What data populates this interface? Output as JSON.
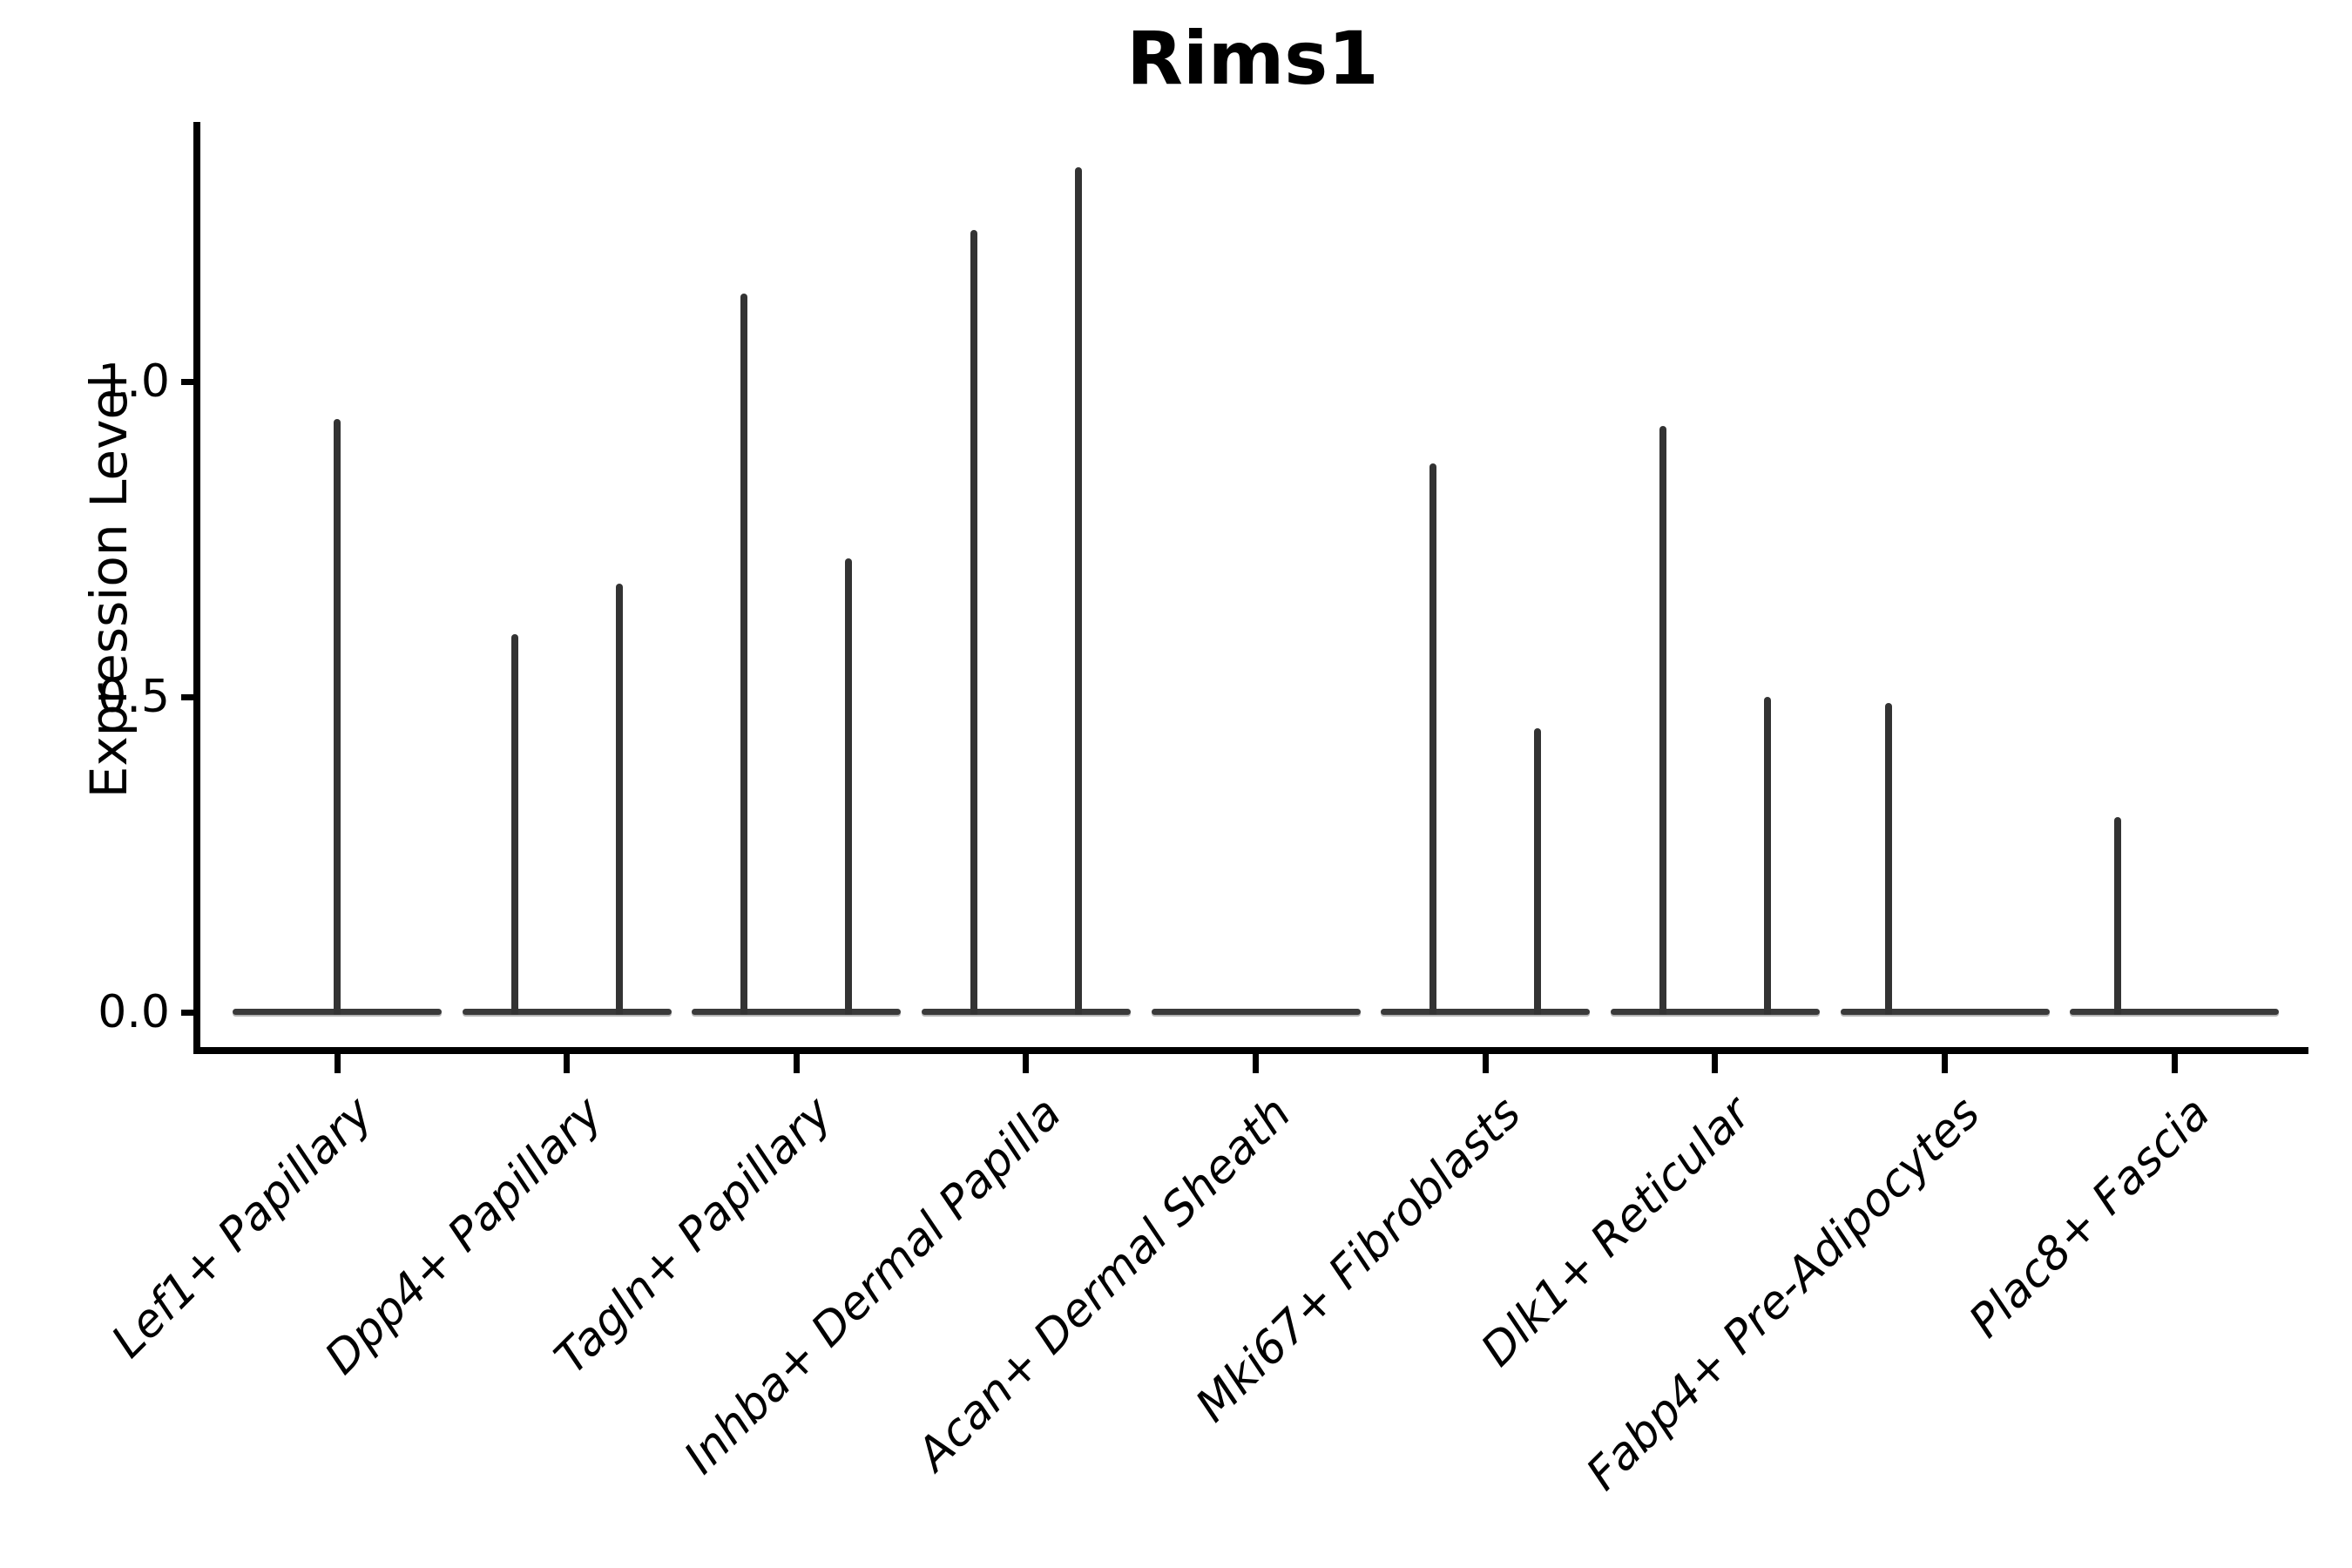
{
  "figure": {
    "title": "Rims1",
    "background_color": "#ffffff",
    "axis_color": "#000000"
  },
  "chart_data": {
    "type": "violin",
    "title": "Rims1",
    "xlabel": "",
    "ylabel": "Expression Level",
    "ylim": [
      -0.06,
      1.41
    ],
    "yticks": [
      0.0,
      0.5,
      1.0
    ],
    "ytick_labels": [
      "0.0",
      "0.5",
      "1.0"
    ],
    "grid": false,
    "legend": null,
    "categories": [
      "Lef1+ Papillary",
      "Dpp4+ Papillary",
      "Tagln+ Papillary",
      "Inhba+ Dermal Papilla",
      "Acan+ Dermal Sheath",
      "Mki67+ Fibroblasts",
      "Dlk1+ Reticular",
      "Fabp4+ Pre-Adipocytes",
      "Plac8+ Fascia"
    ],
    "violins": [
      {
        "category": "Lef1+ Papillary",
        "base_value": 0,
        "spikes": [
          {
            "offset": 0,
            "value": 0.94
          }
        ]
      },
      {
        "category": "Dpp4+ Papillary",
        "base_value": 0,
        "spikes": [
          {
            "offset": -60,
            "value": 0.6
          },
          {
            "offset": 60,
            "value": 0.68
          }
        ]
      },
      {
        "category": "Tagln+ Papillary",
        "base_value": 0,
        "spikes": [
          {
            "offset": -60,
            "value": 1.14
          },
          {
            "offset": 60,
            "value": 0.72
          }
        ]
      },
      {
        "category": "Inhba+ Dermal Papilla",
        "base_value": 0,
        "spikes": [
          {
            "offset": -60,
            "value": 1.24
          },
          {
            "offset": 60,
            "value": 1.34
          }
        ]
      },
      {
        "category": "Acan+ Dermal Sheath",
        "base_value": 0,
        "spikes": []
      },
      {
        "category": "Mki67+ Fibroblasts",
        "base_value": 0,
        "spikes": [
          {
            "offset": -60,
            "value": 0.87
          },
          {
            "offset": 60,
            "value": 0.45
          }
        ]
      },
      {
        "category": "Dlk1+ Reticular",
        "base_value": 0,
        "spikes": [
          {
            "offset": -60,
            "value": 0.93
          },
          {
            "offset": 60,
            "value": 0.5
          }
        ]
      },
      {
        "category": "Fabp4+ Pre-Adipocytes",
        "base_value": 0,
        "spikes": [
          {
            "offset": -65,
            "value": 0.49
          }
        ]
      },
      {
        "category": "Plac8+ Fascia",
        "base_value": 0,
        "spikes": [
          {
            "offset": -65,
            "value": 0.31
          }
        ]
      }
    ],
    "colors": {
      "spike": "#333333",
      "violin_base": "#3a3a3a",
      "axis": "#000000",
      "background": "#ffffff"
    }
  }
}
